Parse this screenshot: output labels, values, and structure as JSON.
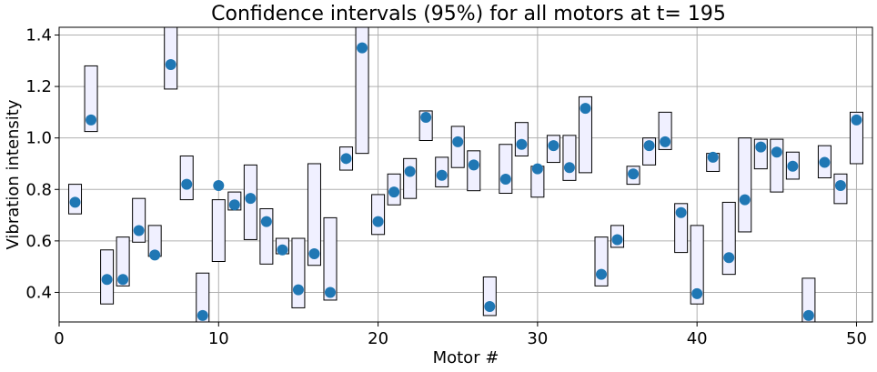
{
  "chart_data": {
    "type": "scatter",
    "title": "Confidence intervals (95%) for all motors at t= 195",
    "xlabel": "Motor #",
    "ylabel": "Vibration intensity",
    "xlim": [
      0,
      51
    ],
    "ylim": [
      0.285,
      1.43
    ],
    "x_ticks": [
      0,
      10,
      20,
      30,
      40,
      50
    ],
    "y_ticks": [
      0.4,
      0.6,
      0.8,
      1.0,
      1.2,
      1.4
    ],
    "x_tick_labels": [
      "0",
      "10",
      "20",
      "30",
      "40",
      "50"
    ],
    "y_tick_labels": [
      "0.4",
      "0.6",
      "0.8",
      "1.0",
      "1.2",
      "1.4"
    ],
    "grid": true,
    "colors": {
      "point": "#1f77b4",
      "interval_fill": "#f0f0ff",
      "interval_edge": "#000000",
      "grid": "#b0b0b0"
    },
    "series": [
      {
        "x": [
          1,
          2,
          3,
          4,
          5,
          6,
          7,
          8,
          9,
          10,
          11,
          12,
          13,
          14,
          15,
          16,
          17,
          18,
          19,
          20,
          21,
          22,
          23,
          24,
          25,
          26,
          27,
          28,
          29,
          30,
          31,
          32,
          33,
          34,
          35,
          36,
          37,
          38,
          39,
          40,
          41,
          42,
          43,
          44,
          45,
          46,
          47,
          48,
          49,
          50
        ],
        "y": [
          0.75,
          1.07,
          0.45,
          0.45,
          0.64,
          0.545,
          1.285,
          0.82,
          0.31,
          0.815,
          0.74,
          0.765,
          0.675,
          0.565,
          0.41,
          0.55,
          0.4,
          0.92,
          1.35,
          0.675,
          0.79,
          0.87,
          1.08,
          0.855,
          0.985,
          0.895,
          0.345,
          0.84,
          0.975,
          0.88,
          0.97,
          0.885,
          1.115,
          0.47,
          0.605,
          0.86,
          0.97,
          0.985,
          0.71,
          0.395,
          0.925,
          0.535,
          0.76,
          0.965,
          0.945,
          0.89,
          0.31,
          0.905,
          0.815,
          1.07
        ],
        "lower": [
          0.705,
          1.025,
          0.355,
          0.425,
          0.595,
          0.54,
          1.19,
          0.76,
          0.22,
          0.52,
          0.72,
          0.605,
          0.51,
          0.55,
          0.34,
          0.505,
          0.37,
          0.875,
          0.94,
          0.625,
          0.74,
          0.765,
          0.99,
          0.81,
          0.885,
          0.795,
          0.31,
          0.785,
          0.93,
          0.77,
          0.905,
          0.835,
          0.865,
          0.425,
          0.575,
          0.82,
          0.895,
          0.955,
          0.555,
          0.355,
          0.87,
          0.47,
          0.635,
          0.88,
          0.79,
          0.84,
          0.25,
          0.845,
          0.745,
          0.9
        ],
        "upper": [
          0.82,
          1.28,
          0.565,
          0.615,
          0.765,
          0.66,
          1.5,
          0.93,
          0.475,
          0.76,
          0.79,
          0.895,
          0.725,
          0.61,
          0.61,
          0.9,
          0.69,
          0.965,
          1.5,
          0.78,
          0.86,
          0.92,
          1.105,
          0.925,
          1.045,
          0.95,
          0.46,
          0.975,
          1.06,
          0.89,
          1.01,
          1.01,
          1.16,
          0.615,
          0.66,
          0.89,
          1.0,
          1.1,
          0.745,
          0.66,
          0.94,
          0.75,
          1.0,
          0.995,
          0.995,
          0.945,
          0.455,
          0.97,
          0.86,
          1.1
        ]
      }
    ]
  }
}
